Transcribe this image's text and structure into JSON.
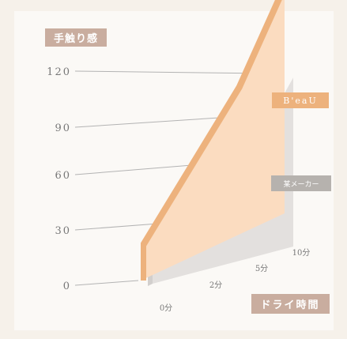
{
  "chart_data": {
    "type": "area",
    "title": "手触り感",
    "xlabel": "ドライ時間",
    "ylabel": "",
    "ylim": [
      0,
      120
    ],
    "y_ticks": [
      "0",
      "30",
      "60",
      "90",
      "120"
    ],
    "x": [
      "0分",
      "2分",
      "5分",
      "10分"
    ],
    "series": [
      {
        "name": "B'eaU",
        "values": [
          20,
          50,
          80,
          125
        ]
      },
      {
        "name": "某メーカー",
        "values": [
          15,
          40,
          55,
          95
        ]
      }
    ],
    "legend_position": "right"
  },
  "colors": {
    "page_background": "#f6f1ea",
    "card_background": "#fbf9f6",
    "tag_background": "#c9ad9f",
    "beau_face": "#fbdcc0",
    "beau_edge": "#edb27d",
    "beau_label_bg": "#edb27d",
    "maker_face": "#e3e0de",
    "maker_side": "#d2cfcd",
    "maker_label_bg": "#b6b2ae",
    "axis_text": "#777777",
    "leader_line": "#b3b3b3"
  }
}
